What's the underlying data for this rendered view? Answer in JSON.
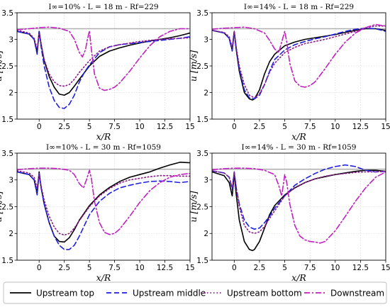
{
  "chart_data": [
    {
      "type": "line",
      "title": "I∞=10% - L = 18 m - Rf=229",
      "xlabel": "x/R",
      "ylabel": "u [m/s]",
      "xlim": [
        -2.2,
        15
      ],
      "ylim": [
        1.5,
        3.5
      ],
      "xticks": [
        "0",
        "2.5",
        "5",
        "7.5",
        "10",
        "12.5",
        "15"
      ],
      "yticks": [
        "1.5",
        "2",
        "2.5",
        "3",
        "3.5"
      ],
      "reference_line": 3.2,
      "grid": true,
      "series": [
        {
          "name": "Upstream top",
          "x": [
            -2.2,
            -1,
            -0.5,
            -0.2,
            0,
            0.2,
            0.5,
            1,
            1.5,
            2,
            2.5,
            3,
            3.5,
            4,
            5,
            6,
            7,
            8,
            9,
            10,
            11,
            12,
            13,
            14,
            15
          ],
          "y": [
            3.15,
            3.1,
            3.0,
            2.75,
            3.15,
            2.9,
            2.6,
            2.3,
            2.1,
            1.97,
            1.95,
            2.0,
            2.12,
            2.25,
            2.5,
            2.68,
            2.78,
            2.84,
            2.89,
            2.93,
            2.97,
            3.0,
            3.03,
            3.07,
            3.12
          ]
        },
        {
          "name": "Upstream middle",
          "x": [
            -2.2,
            -1,
            -0.5,
            -0.2,
            0,
            0.2,
            0.5,
            1,
            1.5,
            2,
            2.5,
            3,
            3.5,
            4,
            4.5,
            5,
            6,
            7,
            8,
            9,
            10,
            11,
            12,
            13,
            14,
            15
          ],
          "y": [
            3.15,
            3.1,
            3.0,
            2.72,
            3.15,
            2.85,
            2.5,
            2.1,
            1.85,
            1.72,
            1.7,
            1.78,
            1.95,
            2.2,
            2.38,
            2.52,
            2.75,
            2.86,
            2.9,
            2.92,
            2.94,
            2.96,
            2.98,
            3.0,
            3.02,
            3.05
          ]
        },
        {
          "name": "Upstream bottom",
          "x": [
            -2.2,
            -1,
            -0.5,
            -0.2,
            0,
            0.2,
            0.5,
            1,
            1.5,
            2,
            2.5,
            3,
            3.5,
            4,
            5,
            6,
            7,
            8,
            9,
            10,
            11,
            12,
            13,
            14,
            15
          ],
          "y": [
            3.17,
            3.12,
            3.02,
            2.82,
            3.12,
            2.9,
            2.62,
            2.35,
            2.2,
            2.13,
            2.12,
            2.15,
            2.25,
            2.38,
            2.6,
            2.78,
            2.86,
            2.9,
            2.93,
            2.96,
            2.98,
            3.0,
            3.01,
            3.02,
            3.03
          ]
        },
        {
          "name": "Downstream",
          "x": [
            -2.2,
            -1,
            0,
            1,
            2,
            3,
            3.5,
            4,
            4.3,
            4.6,
            4.8,
            5,
            5.2,
            5.5,
            6,
            6.5,
            7,
            7.5,
            8,
            9,
            10,
            11,
            12,
            13,
            14,
            15
          ],
          "y": [
            3.18,
            3.2,
            3.22,
            3.23,
            3.21,
            3.15,
            3.0,
            2.75,
            2.67,
            2.8,
            3.0,
            3.16,
            2.8,
            2.35,
            2.08,
            2.04,
            2.06,
            2.1,
            2.18,
            2.4,
            2.65,
            2.88,
            3.05,
            3.15,
            3.2,
            3.2
          ]
        }
      ]
    },
    {
      "type": "line",
      "title": "I∞=14% - L = 18 m - Rf=229",
      "xlabel": "x/R",
      "ylabel": "u [m/s]",
      "xlim": [
        -2.2,
        15
      ],
      "ylim": [
        1.5,
        3.5
      ],
      "xticks": [
        "0",
        "2.5",
        "5",
        "7.5",
        "10",
        "12.5",
        "15"
      ],
      "yticks": [
        "1.5",
        "2",
        "2.5",
        "3",
        "3.5"
      ],
      "reference_line": 3.2,
      "grid": true,
      "series": [
        {
          "name": "Upstream top",
          "x": [
            -2.2,
            -1,
            -0.5,
            -0.2,
            0,
            0.2,
            0.5,
            1,
            1.5,
            1.8,
            2,
            2.5,
            3,
            3.5,
            4,
            5,
            6,
            7,
            8,
            9,
            10,
            11,
            12,
            13,
            14,
            15
          ],
          "y": [
            3.17,
            3.12,
            3.02,
            2.8,
            3.15,
            2.8,
            2.4,
            2.0,
            1.88,
            1.86,
            1.88,
            2.05,
            2.35,
            2.58,
            2.72,
            2.88,
            2.95,
            3.0,
            3.03,
            3.06,
            3.09,
            3.13,
            3.17,
            3.2,
            3.2,
            3.17
          ]
        },
        {
          "name": "Upstream middle",
          "x": [
            -2.2,
            -1,
            -0.5,
            -0.2,
            0,
            0.2,
            0.5,
            1,
            1.5,
            2,
            2.5,
            3,
            3.5,
            4,
            5,
            6,
            7,
            8,
            9,
            10,
            11,
            12,
            13,
            14,
            15
          ],
          "y": [
            3.17,
            3.12,
            3.02,
            2.78,
            3.15,
            2.82,
            2.45,
            2.05,
            1.9,
            1.88,
            1.95,
            2.15,
            2.4,
            2.62,
            2.8,
            2.9,
            2.96,
            3.01,
            3.05,
            3.1,
            3.15,
            3.19,
            3.21,
            3.2,
            3.15
          ]
        },
        {
          "name": "Upstream bottom",
          "x": [
            -2.2,
            -1,
            -0.5,
            -0.2,
            0,
            0.2,
            0.5,
            1,
            1.5,
            2,
            2.5,
            3,
            3.5,
            4,
            5,
            6,
            7,
            8,
            9,
            10,
            11,
            12,
            13,
            14,
            15
          ],
          "y": [
            3.17,
            3.13,
            3.05,
            2.85,
            3.15,
            2.85,
            2.5,
            2.15,
            1.95,
            1.9,
            1.98,
            2.15,
            2.38,
            2.55,
            2.75,
            2.85,
            2.92,
            2.96,
            3.0,
            3.05,
            3.1,
            3.15,
            3.22,
            3.25,
            3.25
          ]
        },
        {
          "name": "Downstream",
          "x": [
            -2.2,
            -1,
            0,
            1,
            2,
            3,
            3.5,
            4,
            4.4,
            4.7,
            5,
            5.2,
            5.5,
            6,
            6.5,
            7,
            7.5,
            8,
            9,
            10,
            11,
            12,
            13,
            14,
            15
          ],
          "y": [
            3.19,
            3.21,
            3.22,
            3.23,
            3.2,
            3.12,
            2.98,
            2.82,
            2.75,
            2.95,
            3.15,
            2.95,
            2.55,
            2.22,
            2.12,
            2.1,
            2.13,
            2.2,
            2.45,
            2.72,
            2.95,
            3.12,
            3.22,
            3.28,
            3.25
          ]
        }
      ]
    },
    {
      "type": "line",
      "title": "I∞=10% - L = 30 m - Rf=1059",
      "xlabel": "x/R",
      "ylabel": "u [m/s]",
      "xlim": [
        -2.2,
        15
      ],
      "ylim": [
        1.5,
        3.5
      ],
      "xticks": [
        "0",
        "2.5",
        "5",
        "7.5",
        "10",
        "12.5",
        "15"
      ],
      "yticks": [
        "1.5",
        "2",
        "2.5",
        "3",
        "3.5"
      ],
      "reference_line": 3.2,
      "grid": true,
      "series": [
        {
          "name": "Upstream top",
          "x": [
            -2.2,
            -1,
            -0.5,
            -0.2,
            0,
            0.2,
            0.5,
            1,
            1.5,
            2,
            2.5,
            3,
            3.5,
            4,
            5,
            6,
            7,
            8,
            9,
            10,
            11,
            12,
            13,
            14,
            15
          ],
          "y": [
            3.15,
            3.1,
            3.0,
            2.75,
            3.15,
            2.85,
            2.55,
            2.2,
            1.95,
            1.85,
            1.84,
            1.92,
            2.07,
            2.25,
            2.52,
            2.72,
            2.86,
            2.97,
            3.05,
            3.1,
            3.15,
            3.22,
            3.28,
            3.33,
            3.32
          ]
        },
        {
          "name": "Upstream middle",
          "x": [
            -2.2,
            -1,
            -0.5,
            -0.2,
            0,
            0.2,
            0.5,
            1,
            1.5,
            2,
            2.5,
            3,
            3.5,
            4,
            5,
            6,
            7,
            8,
            9,
            10,
            11,
            12,
            13,
            14,
            15
          ],
          "y": [
            3.15,
            3.1,
            3.0,
            2.72,
            3.12,
            2.85,
            2.55,
            2.2,
            1.95,
            1.78,
            1.7,
            1.7,
            1.78,
            1.95,
            2.35,
            2.6,
            2.75,
            2.85,
            2.9,
            2.94,
            2.97,
            2.98,
            2.97,
            2.95,
            2.97
          ]
        },
        {
          "name": "Upstream bottom",
          "x": [
            -2.2,
            -1,
            -0.5,
            -0.2,
            0,
            0.2,
            0.5,
            1,
            1.5,
            2,
            2.5,
            3,
            3.5,
            4,
            5,
            6,
            7,
            8,
            9,
            10,
            11,
            12,
            13,
            14,
            15
          ],
          "y": [
            3.17,
            3.13,
            3.05,
            2.85,
            3.12,
            2.88,
            2.62,
            2.32,
            2.12,
            2.0,
            1.97,
            2.0,
            2.1,
            2.24,
            2.5,
            2.7,
            2.84,
            2.94,
            3.0,
            3.03,
            3.06,
            3.08,
            3.08,
            3.07,
            3.07
          ]
        },
        {
          "name": "Downstream",
          "x": [
            -2.2,
            -1,
            0,
            1,
            2,
            3,
            3.5,
            4,
            4.4,
            4.7,
            5,
            5.2,
            5.5,
            6,
            6.5,
            7,
            7.5,
            8,
            9,
            10,
            11,
            12,
            13,
            14,
            15
          ],
          "y": [
            3.19,
            3.21,
            3.22,
            3.22,
            3.21,
            3.18,
            3.1,
            2.93,
            2.85,
            3.0,
            3.18,
            3.02,
            2.6,
            2.2,
            2.02,
            1.98,
            2.0,
            2.08,
            2.32,
            2.58,
            2.8,
            2.95,
            3.05,
            3.1,
            3.12
          ]
        }
      ]
    },
    {
      "type": "line",
      "title": "I∞=14% - L = 30 m - Rf=1059",
      "xlabel": "x/R",
      "ylabel": "u [m/s]",
      "xlim": [
        -2.2,
        15
      ],
      "ylim": [
        1.5,
        3.5
      ],
      "xticks": [
        "0",
        "2.5",
        "5",
        "7.5",
        "10",
        "12.5",
        "15"
      ],
      "yticks": [
        "1.5",
        "2",
        "2.5",
        "3",
        "3.5"
      ],
      "reference_line": 3.2,
      "grid": true,
      "series": [
        {
          "name": "Upstream top",
          "x": [
            -2.2,
            -1,
            -0.5,
            -0.2,
            0,
            0.2,
            0.5,
            1,
            1.5,
            1.8,
            2,
            2.5,
            3,
            3.5,
            4,
            5,
            6,
            7,
            8,
            9,
            10,
            11,
            12,
            13,
            14,
            15
          ],
          "y": [
            3.15,
            3.08,
            2.95,
            2.7,
            3.12,
            2.72,
            2.25,
            1.85,
            1.7,
            1.68,
            1.7,
            1.85,
            2.1,
            2.35,
            2.52,
            2.72,
            2.85,
            2.95,
            3.02,
            3.06,
            3.1,
            3.13,
            3.16,
            3.18,
            3.18,
            3.16
          ]
        },
        {
          "name": "Upstream middle",
          "x": [
            -2.2,
            -1,
            -0.5,
            -0.2,
            0,
            0.2,
            0.5,
            1,
            1.5,
            2,
            2.5,
            3,
            3.5,
            4,
            5,
            6,
            7,
            8,
            9,
            10,
            11,
            12,
            13,
            14,
            15
          ],
          "y": [
            3.17,
            3.13,
            3.05,
            2.82,
            3.15,
            2.85,
            2.55,
            2.25,
            2.12,
            2.08,
            2.1,
            2.2,
            2.32,
            2.47,
            2.7,
            2.9,
            3.02,
            3.12,
            3.2,
            3.25,
            3.28,
            3.25,
            3.18,
            3.15,
            3.16
          ]
        },
        {
          "name": "Upstream bottom",
          "x": [
            -2.2,
            -1,
            -0.5,
            -0.2,
            0,
            0.2,
            0.5,
            1,
            1.5,
            2,
            2.5,
            3,
            3.5,
            4,
            5,
            6,
            7,
            8,
            9,
            10,
            11,
            12,
            13,
            14,
            15
          ],
          "y": [
            3.17,
            3.13,
            3.05,
            2.85,
            3.15,
            2.85,
            2.5,
            2.15,
            2.03,
            2.0,
            2.03,
            2.13,
            2.28,
            2.42,
            2.7,
            2.86,
            2.95,
            3.02,
            3.07,
            3.1,
            3.12,
            3.14,
            3.15,
            3.15,
            3.16
          ]
        },
        {
          "name": "Downstream",
          "x": [
            -2.2,
            -1,
            0,
            1,
            2,
            3,
            4,
            4.4,
            4.7,
            5,
            5.2,
            5.5,
            6,
            6.5,
            7,
            7.5,
            8,
            8.5,
            9,
            10,
            11,
            12,
            13,
            14,
            15
          ],
          "y": [
            3.19,
            3.21,
            3.22,
            3.22,
            3.21,
            3.18,
            3.1,
            2.9,
            2.7,
            3.1,
            2.95,
            2.55,
            2.15,
            1.95,
            1.88,
            1.85,
            1.84,
            1.82,
            1.85,
            2.05,
            2.32,
            2.6,
            2.85,
            3.05,
            3.15
          ]
        }
      ]
    }
  ],
  "styles": {
    "Upstream top": {
      "color": "#000000",
      "dash": ""
    },
    "Upstream middle": {
      "color": "#1f1fe0",
      "dash": "7,4"
    },
    "Upstream bottom": {
      "color": "#8b1a8b",
      "dash": "1.5,3"
    },
    "Downstream": {
      "color": "#c020c0",
      "dash": "8,3,2,3"
    },
    "reference": {
      "color": "#b0b0b0"
    },
    "grid": {
      "color": "#cfcfcf"
    }
  },
  "legend": {
    "placement": "bottom",
    "entries": [
      "Upstream top",
      "Upstream middle",
      "Upstream bottom",
      "Downstream"
    ]
  }
}
